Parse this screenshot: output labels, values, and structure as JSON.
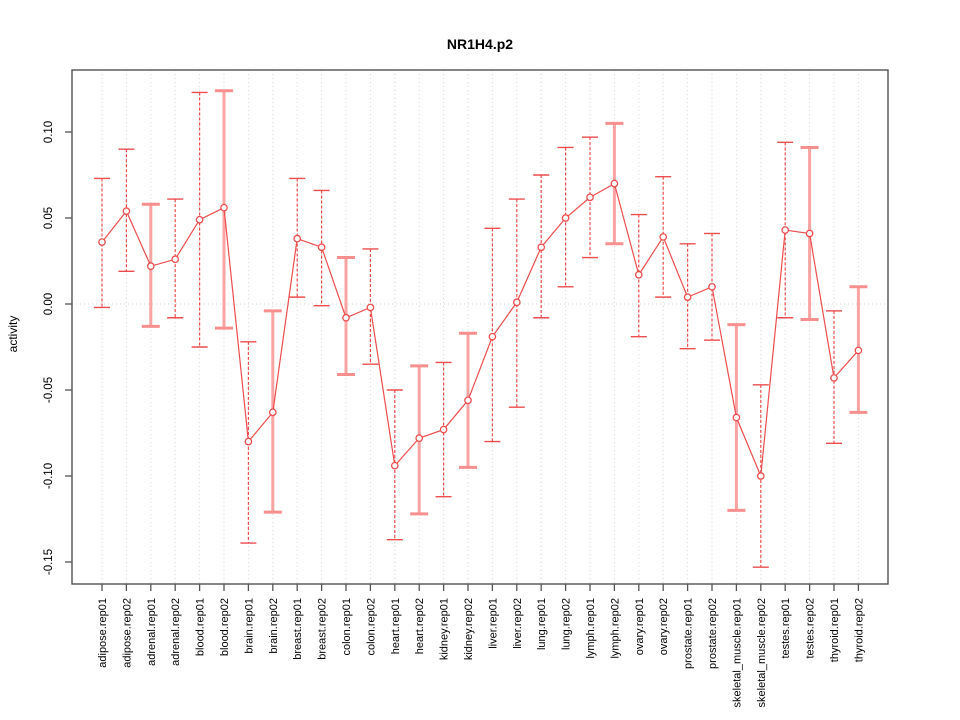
{
  "header": {
    "title": "NR1H4.p2"
  },
  "chart_data": {
    "type": "line",
    "title": "NR1H4.p2",
    "xlabel": "",
    "ylabel": "activity",
    "ylim": [
      -0.165,
      0.136
    ],
    "yticks": [
      0.1,
      0.05,
      0.0,
      -0.05,
      -0.1,
      -0.15
    ],
    "ytick_labels": [
      "0.10",
      "0.05",
      "0.00",
      "-0.05",
      "-0.10",
      "-0.15"
    ],
    "grid": "dotted vertical gridline per category; dotted horizontal reference line at 0",
    "legend_position": "none",
    "marker": "open-circle",
    "categories": [
      "adipose.rep01",
      "adipose.rep02",
      "adrenal.rep01",
      "adrenal.rep02",
      "blood.rep01",
      "blood.rep02",
      "brain.rep01",
      "brain.rep02",
      "breast.rep01",
      "breast.rep02",
      "colon.rep01",
      "colon.rep02",
      "heart.rep01",
      "heart.rep02",
      "kidney.rep01",
      "kidney.rep02",
      "liver.rep01",
      "liver.rep02",
      "lung.rep01",
      "lung.rep02",
      "lymph.rep01",
      "lymph.rep02",
      "ovary.rep01",
      "ovary.rep02",
      "prostate.rep01",
      "prostate.rep02",
      "skeletal_muscle.rep01",
      "skeletal_muscle.rep02",
      "testes.rep01",
      "testes.rep02",
      "thyroid.rep01",
      "thyroid.rep02"
    ],
    "series": [
      {
        "name": "activity",
        "values": [
          0.036,
          0.054,
          0.022,
          0.026,
          0.049,
          0.056,
          -0.08,
          -0.063,
          0.038,
          0.033,
          -0.008,
          -0.002,
          -0.094,
          -0.078,
          -0.073,
          -0.056,
          -0.019,
          0.001,
          0.033,
          0.05,
          0.062,
          0.07,
          0.017,
          0.039,
          0.004,
          0.01,
          -0.066,
          -0.1,
          0.043,
          0.041,
          -0.043,
          -0.027
        ],
        "ci_high": [
          0.073,
          0.09,
          0.058,
          0.061,
          0.123,
          0.124,
          -0.022,
          -0.004,
          0.073,
          0.066,
          0.027,
          0.032,
          -0.05,
          -0.036,
          -0.034,
          -0.017,
          0.044,
          0.061,
          0.075,
          0.091,
          0.097,
          0.105,
          0.052,
          0.074,
          0.035,
          0.041,
          -0.012,
          -0.047,
          0.094,
          0.091,
          -0.004,
          0.01
        ],
        "ci_low": [
          -0.002,
          0.019,
          -0.013,
          -0.008,
          -0.025,
          -0.014,
          -0.139,
          -0.121,
          0.004,
          -0.001,
          -0.041,
          -0.035,
          -0.137,
          -0.122,
          -0.112,
          -0.095,
          -0.08,
          -0.06,
          -0.008,
          0.01,
          0.027,
          0.035,
          -0.019,
          0.004,
          -0.026,
          -0.021,
          -0.12,
          -0.153,
          -0.008,
          -0.009,
          -0.081,
          -0.063
        ]
      }
    ],
    "thick_bar_indices": [
      2,
      5,
      7,
      10,
      13,
      15,
      21,
      26,
      29,
      31
    ]
  },
  "colors": {
    "series_red": "#ed4d4d",
    "light_bar_pink": "#f9a3a3",
    "light_cap_pink": "#f78f8f",
    "grid_gray": "#d6d6d6",
    "frame_gray": "#444444",
    "tick_gray": "#555555"
  }
}
